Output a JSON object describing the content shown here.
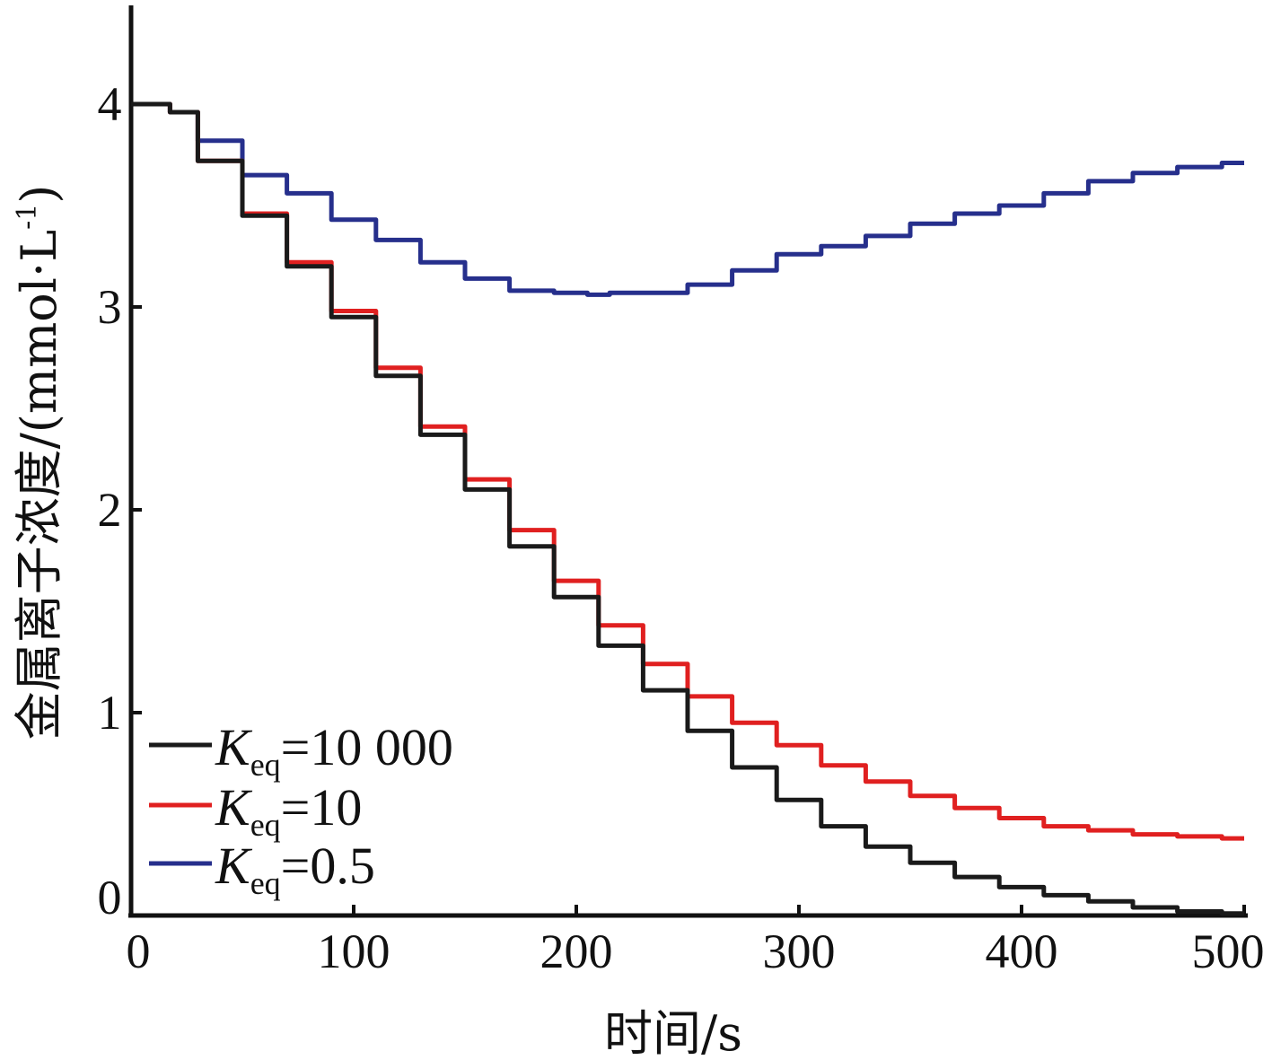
{
  "chart_data": {
    "type": "line",
    "xlabel": "时间/s",
    "ylabel": "金属离子浓度/(mmol·L",
    "ylabel_sup": "-1",
    "ylabel_close": ")",
    "xlim": [
      0,
      500
    ],
    "ylim": [
      0,
      4.5
    ],
    "x_ticks": [
      "0",
      "100",
      "200",
      "300",
      "400",
      "500"
    ],
    "y_ticks": [
      "0",
      "1",
      "2",
      "3",
      "4"
    ],
    "x_tick_values": [
      0,
      100,
      200,
      300,
      400,
      500
    ],
    "y_tick_values": [
      0,
      1,
      2,
      3,
      4
    ],
    "grid": false,
    "legend_position": "bottom-left",
    "series": [
      {
        "name": "Keq=10 000",
        "name_main": "K",
        "name_sub": "eq",
        "name_rest": "=10 000",
        "color": "#1a1a1a",
        "x": [
          0,
          15,
          20,
          40,
          60,
          80,
          100,
          120,
          140,
          160,
          180,
          200,
          220,
          240,
          260,
          280,
          300,
          320,
          340,
          360,
          380,
          400,
          420,
          440,
          460,
          480,
          500
        ],
        "y": [
          4.0,
          4.0,
          3.96,
          3.72,
          3.45,
          3.2,
          2.95,
          2.66,
          2.37,
          2.1,
          1.82,
          1.57,
          1.33,
          1.11,
          0.91,
          0.73,
          0.57,
          0.44,
          0.34,
          0.26,
          0.19,
          0.14,
          0.1,
          0.07,
          0.04,
          0.02,
          0.01
        ]
      },
      {
        "name": "Keq=10",
        "name_main": "K",
        "name_sub": "eq",
        "name_rest": "=10",
        "color": "#e02020",
        "x": [
          0,
          15,
          20,
          40,
          60,
          80,
          100,
          120,
          140,
          160,
          180,
          200,
          220,
          240,
          260,
          280,
          300,
          320,
          340,
          360,
          380,
          400,
          420,
          440,
          460,
          480,
          500
        ],
        "y": [
          4.0,
          4.0,
          3.96,
          3.72,
          3.46,
          3.22,
          2.98,
          2.7,
          2.41,
          2.15,
          1.9,
          1.65,
          1.43,
          1.24,
          1.08,
          0.95,
          0.84,
          0.74,
          0.66,
          0.59,
          0.53,
          0.48,
          0.44,
          0.42,
          0.4,
          0.39,
          0.38
        ]
      },
      {
        "name": "Keq=0.5",
        "name_main": "K",
        "name_sub": "eq",
        "name_rest": "=0.5",
        "color": "#262f8c",
        "x": [
          0,
          15,
          20,
          40,
          60,
          80,
          100,
          120,
          140,
          160,
          180,
          200,
          210,
          220,
          240,
          260,
          280,
          300,
          320,
          340,
          360,
          380,
          400,
          420,
          440,
          460,
          480,
          500
        ],
        "y": [
          4.0,
          4.0,
          3.96,
          3.82,
          3.65,
          3.56,
          3.43,
          3.33,
          3.22,
          3.14,
          3.08,
          3.07,
          3.06,
          3.07,
          3.07,
          3.11,
          3.18,
          3.26,
          3.3,
          3.35,
          3.41,
          3.46,
          3.5,
          3.56,
          3.62,
          3.66,
          3.69,
          3.71
        ]
      }
    ]
  }
}
